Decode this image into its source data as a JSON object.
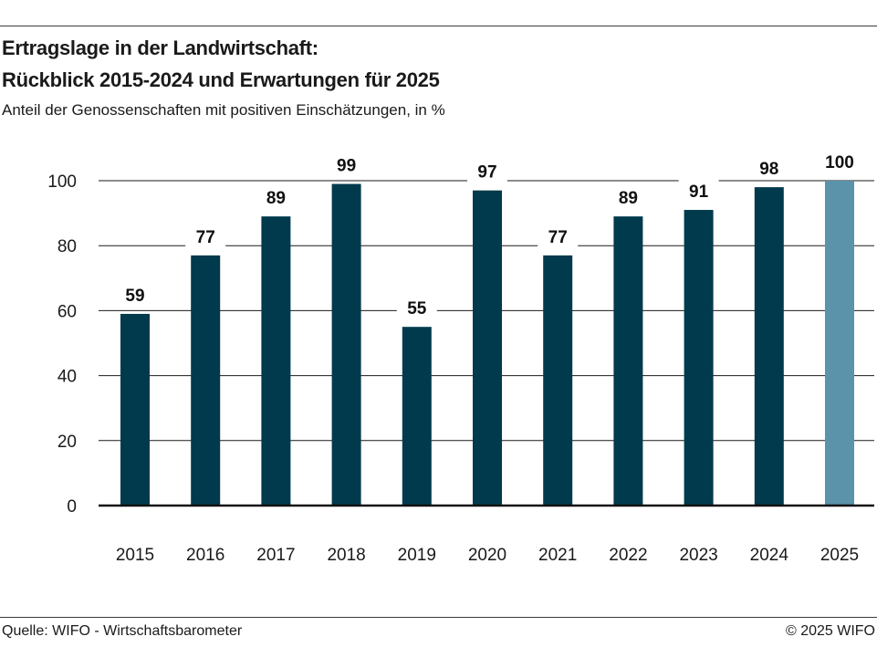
{
  "header": {
    "title_line1": "Ertragslage in der Landwirtschaft:",
    "title_line2": "Rückblick 2015-2024 und Erwartungen für 2025",
    "subtitle": "Anteil der Genossenschaften mit positiven Einschätzungen, in %"
  },
  "footer": {
    "source": "Quelle: WIFO - Wirtschaftsbarometer",
    "copyright": "© 2025 WIFO"
  },
  "colors": {
    "bar": "#003a4c",
    "bar_highlight": "#5a93aa",
    "grid": "#1a1a1a",
    "axis": "#111111"
  },
  "chart_data": {
    "type": "bar",
    "title": "Ertragslage in der Landwirtschaft: Rückblick 2015-2024 und Erwartungen für 2025",
    "subtitle": "Anteil der Genossenschaften mit positiven Einschätzungen, in %",
    "xlabel": "",
    "ylabel": "",
    "categories": [
      "2015",
      "2016",
      "2017",
      "2018",
      "2019",
      "2020",
      "2021",
      "2022",
      "2023",
      "2024",
      "2025"
    ],
    "values": [
      59,
      77,
      89,
      99,
      55,
      97,
      77,
      89,
      91,
      98,
      100
    ],
    "highlight_categories": [
      "2025"
    ],
    "ylim": [
      0,
      100
    ],
    "yticks": [
      0,
      20,
      40,
      60,
      80,
      100
    ],
    "grid": true,
    "legend": "none"
  }
}
